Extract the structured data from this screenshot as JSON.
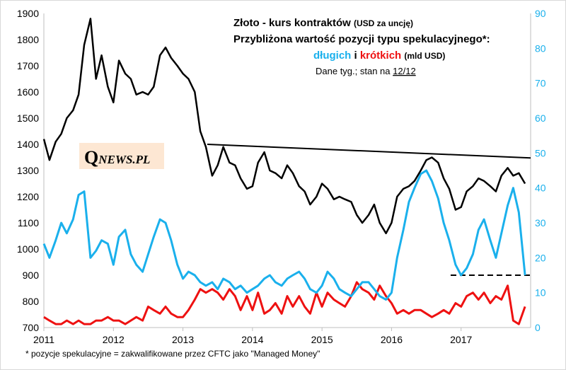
{
  "chart_data": {
    "type": "line",
    "title": {
      "line1_main": "Złoto - kurs kontraktów",
      "line1_unit": "(USD za uncję)",
      "line2": "Przybliżona wartość pozycji typu spekulacyjnego*:",
      "line3_long": "długich",
      "line3_and": "i",
      "line3_short": "krótkich",
      "line3_unit": "(mld USD)",
      "line4_prefix": "Dane tyg.; stan na",
      "line4_date": "12/12"
    },
    "footnote": "* pozycje spekulacyjne = zakwalifikowane przez CFTC jako \"Managed Money\"",
    "watermark": {
      "q": "Q",
      "rest": "NEWS.PL"
    },
    "x_ticks": [
      "2011",
      "2012",
      "2013",
      "2014",
      "2015",
      "2016",
      "2017"
    ],
    "xlim": [
      2011.0,
      2018.0
    ],
    "y_left": {
      "ticks": [
        "700",
        "800",
        "900",
        "1000",
        "1100",
        "1200",
        "1300",
        "1400",
        "1500",
        "1600",
        "1700",
        "1800",
        "1900"
      ],
      "lim": [
        700,
        1900
      ]
    },
    "y_right": {
      "ticks": [
        "0",
        "10",
        "20",
        "30",
        "40",
        "50",
        "60",
        "70",
        "80",
        "90"
      ],
      "lim": [
        0,
        90
      ]
    },
    "colors": {
      "price": "#000000",
      "long": "#1ab0ec",
      "short": "#ee1111",
      "right_axis": "#1ab0ec"
    },
    "series": [
      {
        "axis": "left",
        "x": [
          2011.0,
          2011.08,
          2011.17,
          2011.25,
          2011.33,
          2011.42,
          2011.5,
          2011.58,
          2011.67,
          2011.75,
          2011.83,
          2011.92,
          2012.0,
          2012.08,
          2012.17,
          2012.25,
          2012.33,
          2012.42,
          2012.5,
          2012.58,
          2012.67,
          2012.75,
          2012.83,
          2012.92,
          2013.0,
          2013.08,
          2013.17,
          2013.25,
          2013.33,
          2013.42,
          2013.5,
          2013.58,
          2013.67,
          2013.75,
          2013.83,
          2013.92,
          2014.0,
          2014.08,
          2014.17,
          2014.25,
          2014.33,
          2014.42,
          2014.5,
          2014.58,
          2014.67,
          2014.75,
          2014.83,
          2014.92,
          2015.0,
          2015.08,
          2015.17,
          2015.25,
          2015.33,
          2015.42,
          2015.5,
          2015.58,
          2015.67,
          2015.75,
          2015.83,
          2015.92,
          2016.0,
          2016.08,
          2016.17,
          2016.25,
          2016.33,
          2016.42,
          2016.5,
          2016.58,
          2016.67,
          2016.75,
          2016.83,
          2016.92,
          2017.0,
          2017.08,
          2017.17,
          2017.25,
          2017.33,
          2017.42,
          2017.5,
          2017.58,
          2017.67,
          2017.75,
          2017.83,
          2017.92
        ],
        "values": [
          1420,
          1340,
          1410,
          1440,
          1500,
          1530,
          1590,
          1780,
          1880,
          1650,
          1740,
          1620,
          1560,
          1720,
          1670,
          1650,
          1590,
          1600,
          1590,
          1620,
          1740,
          1770,
          1730,
          1700,
          1670,
          1650,
          1600,
          1450,
          1390,
          1280,
          1320,
          1390,
          1330,
          1320,
          1270,
          1230,
          1240,
          1330,
          1370,
          1300,
          1290,
          1270,
          1320,
          1290,
          1240,
          1220,
          1170,
          1200,
          1250,
          1230,
          1190,
          1200,
          1190,
          1180,
          1130,
          1100,
          1130,
          1170,
          1100,
          1060,
          1100,
          1200,
          1230,
          1240,
          1260,
          1300,
          1340,
          1350,
          1330,
          1270,
          1230,
          1150,
          1160,
          1220,
          1240,
          1270,
          1260,
          1240,
          1220,
          1280,
          1310,
          1280,
          1290,
          1250
        ]
      },
      {
        "axis": "right",
        "x": [
          2011.0,
          2011.08,
          2011.17,
          2011.25,
          2011.33,
          2011.42,
          2011.5,
          2011.58,
          2011.67,
          2011.75,
          2011.83,
          2011.92,
          2012.0,
          2012.08,
          2012.17,
          2012.25,
          2012.33,
          2012.42,
          2012.5,
          2012.58,
          2012.67,
          2012.75,
          2012.83,
          2012.92,
          2013.0,
          2013.08,
          2013.17,
          2013.25,
          2013.33,
          2013.42,
          2013.5,
          2013.58,
          2013.67,
          2013.75,
          2013.83,
          2013.92,
          2014.0,
          2014.08,
          2014.17,
          2014.25,
          2014.33,
          2014.42,
          2014.5,
          2014.58,
          2014.67,
          2014.75,
          2014.83,
          2014.92,
          2015.0,
          2015.08,
          2015.17,
          2015.25,
          2015.33,
          2015.42,
          2015.5,
          2015.58,
          2015.67,
          2015.75,
          2015.83,
          2015.92,
          2016.0,
          2016.08,
          2016.17,
          2016.25,
          2016.33,
          2016.42,
          2016.5,
          2016.58,
          2016.67,
          2016.75,
          2016.83,
          2016.92,
          2017.0,
          2017.08,
          2017.17,
          2017.25,
          2017.33,
          2017.42,
          2017.5,
          2017.58,
          2017.67,
          2017.75,
          2017.83,
          2017.92
        ],
        "values": [
          24,
          20,
          25,
          30,
          27,
          31,
          38,
          39,
          20,
          22,
          25,
          24,
          18,
          26,
          28,
          21,
          18,
          16,
          21,
          26,
          31,
          30,
          25,
          18,
          14,
          16,
          15,
          13,
          12,
          13,
          11,
          14,
          13,
          11,
          12,
          10,
          11,
          12,
          14,
          15,
          13,
          12,
          14,
          15,
          16,
          14,
          11,
          10,
          12,
          16,
          14,
          11,
          10,
          9,
          11,
          13,
          13,
          11,
          9,
          8,
          10,
          20,
          28,
          36,
          40,
          44,
          45,
          42,
          37,
          30,
          25,
          18,
          15,
          17,
          21,
          28,
          31,
          25,
          20,
          27,
          35,
          40,
          33,
          15
        ]
      },
      {
        "axis": "right",
        "x": [
          2011.0,
          2011.08,
          2011.17,
          2011.25,
          2011.33,
          2011.42,
          2011.5,
          2011.58,
          2011.67,
          2011.75,
          2011.83,
          2011.92,
          2012.0,
          2012.08,
          2012.17,
          2012.25,
          2012.33,
          2012.42,
          2012.5,
          2012.58,
          2012.67,
          2012.75,
          2012.83,
          2012.92,
          2013.0,
          2013.08,
          2013.17,
          2013.25,
          2013.33,
          2013.42,
          2013.5,
          2013.58,
          2013.67,
          2013.75,
          2013.83,
          2013.92,
          2014.0,
          2014.08,
          2014.17,
          2014.25,
          2014.33,
          2014.42,
          2014.5,
          2014.58,
          2014.67,
          2014.75,
          2014.83,
          2014.92,
          2015.0,
          2015.08,
          2015.17,
          2015.25,
          2015.33,
          2015.42,
          2015.5,
          2015.58,
          2015.67,
          2015.75,
          2015.83,
          2015.92,
          2016.0,
          2016.08,
          2016.17,
          2016.25,
          2016.33,
          2016.42,
          2016.5,
          2016.58,
          2016.67,
          2016.75,
          2016.83,
          2016.92,
          2017.0,
          2017.08,
          2017.17,
          2017.25,
          2017.33,
          2017.42,
          2017.5,
          2017.58,
          2017.67,
          2017.75,
          2017.83,
          2017.92
        ],
        "values": [
          3,
          2,
          1,
          1,
          2,
          1,
          2,
          1,
          1,
          2,
          2,
          3,
          2,
          2,
          1,
          2,
          3,
          2,
          6,
          5,
          4,
          6,
          4,
          3,
          3,
          5,
          8,
          11,
          10,
          11,
          10,
          8,
          11,
          9,
          5,
          9,
          5,
          10,
          4,
          5,
          7,
          4,
          9,
          6,
          9,
          6,
          4,
          10,
          6,
          10,
          8,
          7,
          6,
          9,
          13,
          11,
          10,
          8,
          12,
          9,
          7,
          4,
          5,
          4,
          5,
          5,
          4,
          3,
          4,
          5,
          4,
          7,
          6,
          9,
          10,
          8,
          10,
          7,
          9,
          8,
          12,
          2,
          1,
          6
        ]
      }
    ],
    "resistance_line": {
      "x": [
        2013.35,
        2018.0
      ],
      "y": [
        1400,
        1348
      ]
    },
    "dashed_level": {
      "x": [
        2016.85,
        2018.0
      ],
      "y": [
        15,
        15
      ]
    }
  }
}
